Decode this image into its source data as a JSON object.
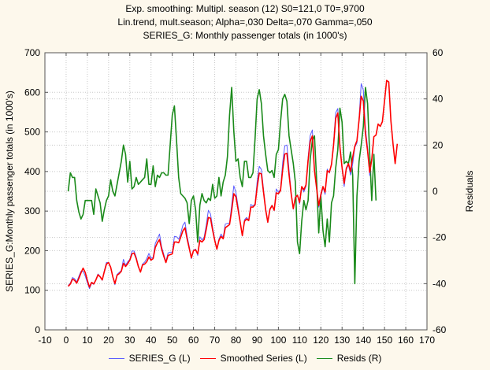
{
  "titles": [
    "Exp. smoothing: Multipl. season (12) S0=121,0 T0=,9700",
    "Lin.trend, mult.season; Alpha=,030 Delta=,070 Gamma=,050",
    "SERIES_G: Monthly passenger totals (in 1000's)"
  ],
  "chart_data": {
    "type": "line",
    "title": "Exp. smoothing: Multipl. season (12) S0=121,0 T0=,9700 / Lin.trend, mult.season; Alpha=,030 Delta=,070 Gamma=,050 / SERIES_G: Monthly passenger totals (in 1000's)",
    "xlabel": "",
    "ylabel": "SERIES_G:Monthly passenger totals (in 1000's)",
    "y2label": "Residuals",
    "xlim": [
      -10,
      170
    ],
    "ylim": [
      0,
      700
    ],
    "y2lim": [
      -60,
      60
    ],
    "xticks": [
      -10,
      0,
      10,
      20,
      30,
      40,
      50,
      60,
      70,
      80,
      90,
      100,
      110,
      120,
      130,
      140,
      150,
      160,
      170
    ],
    "yticks": [
      0,
      100,
      200,
      300,
      400,
      500,
      600,
      700
    ],
    "y2ticks": [
      -60,
      -40,
      -20,
      0,
      20,
      40,
      60
    ],
    "grid": true,
    "legend_position": "bottom",
    "series": [
      {
        "name": "SERIES_G (L)",
        "axis": "left",
        "color": "#5a5aff",
        "x_start": 1,
        "values": [
          112,
          118,
          132,
          129,
          121,
          135,
          148,
          148,
          136,
          119,
          104,
          118,
          115,
          126,
          141,
          135,
          125,
          149,
          170,
          170,
          158,
          133,
          114,
          140,
          145,
          150,
          178,
          163,
          172,
          178,
          199,
          199,
          184,
          162,
          146,
          166,
          171,
          180,
          193,
          181,
          183,
          218,
          230,
          242,
          209,
          191,
          172,
          194,
          196,
          196,
          236,
          235,
          229,
          243,
          264,
          272,
          237,
          211,
          180,
          201,
          204,
          188,
          235,
          227,
          234,
          264,
          302,
          293,
          259,
          229,
          203,
          229,
          242,
          233,
          267,
          269,
          270,
          315,
          364,
          347,
          312,
          274,
          237,
          278,
          284,
          277,
          317,
          313,
          318,
          374,
          413,
          405,
          355,
          306,
          271,
          306,
          315,
          301,
          356,
          348,
          355,
          422,
          465,
          467,
          404,
          347,
          305,
          336,
          340,
          318,
          362,
          348,
          363,
          435,
          491,
          505,
          404,
          359,
          310,
          337,
          360,
          342,
          406,
          396,
          420,
          472,
          548,
          559,
          463,
          407,
          362,
          405,
          417,
          391,
          419,
          461,
          472,
          535,
          622,
          606,
          508,
          461,
          390,
          432
        ]
      },
      {
        "name": "Smoothed Series (L)",
        "axis": "left",
        "color": "#ff0000",
        "x_start": 1,
        "values": [
          110,
          116,
          128,
          125,
          118,
          130,
          144,
          156,
          145,
          125,
          108,
          120,
          116,
          126,
          139,
          134,
          126,
          147,
          166,
          170,
          158,
          134,
          117,
          138,
          142,
          148,
          168,
          160,
          167,
          176,
          192,
          194,
          180,
          160,
          146,
          164,
          166,
          172,
          184,
          176,
          180,
          208,
          220,
          228,
          204,
          186,
          170,
          188,
          190,
          192,
          222,
          222,
          220,
          234,
          250,
          258,
          230,
          206,
          182,
          200,
          202,
          192,
          226,
          222,
          228,
          254,
          284,
          282,
          252,
          226,
          204,
          226,
          236,
          230,
          258,
          262,
          266,
          302,
          344,
          336,
          304,
          272,
          238,
          274,
          280,
          276,
          310,
          310,
          316,
          360,
          396,
          394,
          348,
          304,
          272,
          304,
          314,
          302,
          346,
          344,
          352,
          404,
          444,
          446,
          392,
          344,
          306,
          334,
          340,
          322,
          362,
          354,
          366,
          428,
          476,
          490,
          402,
          358,
          314,
          342,
          362,
          348,
          402,
          398,
          418,
          466,
          534,
          548,
          462,
          410,
          370,
          408,
          420,
          400,
          436,
          464,
          478,
          530,
          590,
          578,
          496,
          452,
          398,
          430,
          488,
          492,
          520,
          514,
          526,
          578,
          630,
          626,
          528,
          470,
          420,
          470
        ]
      },
      {
        "name": "Resids (R)",
        "axis": "right",
        "color": "#1a8a1a",
        "x_start": 1,
        "values": [
          0,
          8,
          6,
          6,
          -4,
          -9,
          -12,
          -10,
          -4,
          -4,
          -4,
          -4,
          -10,
          1,
          -2,
          -5,
          -13,
          -8,
          -4,
          -2,
          5,
          0,
          -2,
          3,
          8,
          13,
          20,
          16,
          4,
          13,
          1,
          2,
          6,
          3,
          4,
          5,
          6,
          14,
          3,
          3,
          11,
          2,
          7,
          6,
          8,
          8,
          7,
          7,
          20,
          33,
          37,
          22,
          6,
          -1,
          -2,
          -3,
          -5,
          -14,
          -4,
          -2,
          -8,
          -22,
          -6,
          -1,
          -4,
          -5,
          -3,
          -4,
          3,
          -3,
          -2,
          6,
          -2,
          4,
          7,
          15,
          33,
          45,
          26,
          13,
          14,
          6,
          2,
          13,
          13,
          6,
          6,
          8,
          23,
          40,
          44,
          38,
          24,
          16,
          9,
          8,
          9,
          6,
          16,
          18,
          30,
          40,
          42,
          39,
          24,
          18,
          12,
          4,
          -22,
          -27,
          -13,
          -4,
          -8,
          -4,
          14,
          22,
          24,
          5,
          -18,
          -2,
          -17,
          -24,
          -12,
          -22,
          -5,
          -2,
          10,
          18,
          36,
          30,
          12,
          13,
          12,
          17,
          7,
          -40,
          -2,
          13,
          20,
          28,
          45,
          38,
          16,
          -4,
          16,
          -4
        ]
      }
    ]
  },
  "legend": [
    {
      "label": "SERIES_G (L)",
      "color": "#5a5aff"
    },
    {
      "label": "Smoothed Series (L)",
      "color": "#ff0000"
    },
    {
      "label": "Resids (R)",
      "color": "#1a8a1a"
    }
  ]
}
